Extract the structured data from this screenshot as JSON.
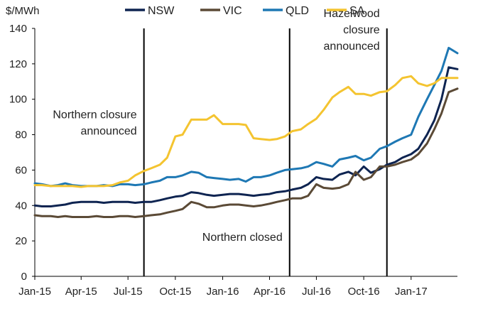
{
  "chart_data": {
    "type": "line",
    "ylabel": "$/MWh",
    "xlabel": "",
    "ylim": [
      0,
      140
    ],
    "yticks": [
      0,
      20,
      40,
      60,
      80,
      100,
      120,
      140
    ],
    "xlim": [
      "2015-01-01",
      "2017-04-01"
    ],
    "xticks": [
      {
        "date": "2015-01-01",
        "label": "Jan-15"
      },
      {
        "date": "2015-04-01",
        "label": "Apr-15"
      },
      {
        "date": "2015-07-01",
        "label": "Jul-15"
      },
      {
        "date": "2015-10-01",
        "label": "Oct-15"
      },
      {
        "date": "2016-01-01",
        "label": "Jan-16"
      },
      {
        "date": "2016-04-01",
        "label": "Apr-16"
      },
      {
        "date": "2016-07-01",
        "label": "Jul-16"
      },
      {
        "date": "2016-10-01",
        "label": "Oct-16"
      },
      {
        "date": "2017-01-01",
        "label": "Jan-17"
      }
    ],
    "grid": false,
    "legend_position": "top",
    "events": [
      {
        "date": "2015-08-01",
        "label_lines": [
          "Northern closure",
          "announced"
        ],
        "label_side": "left",
        "label_value": 80
      },
      {
        "date": "2016-05-10",
        "label_lines": [
          "Northern closed"
        ],
        "label_side": "left",
        "label_value": 20
      },
      {
        "date": "2016-11-15",
        "label_lines": [
          "Hazelwood",
          "closure",
          "announced"
        ],
        "label_side": "left",
        "label_value": 128
      }
    ],
    "series": [
      {
        "name": "NSW",
        "color": "#0e2451",
        "points": [
          [
            "2015-01-01",
            40
          ],
          [
            "2015-01-15",
            39.5
          ],
          [
            "2015-02-01",
            39.5
          ],
          [
            "2015-02-15",
            40
          ],
          [
            "2015-03-01",
            40.5
          ],
          [
            "2015-03-15",
            41.5
          ],
          [
            "2015-04-01",
            42
          ],
          [
            "2015-04-15",
            42
          ],
          [
            "2015-05-01",
            42
          ],
          [
            "2015-05-15",
            41.5
          ],
          [
            "2015-06-01",
            42
          ],
          [
            "2015-06-15",
            42
          ],
          [
            "2015-07-01",
            42
          ],
          [
            "2015-07-15",
            41.5
          ],
          [
            "2015-08-01",
            42
          ],
          [
            "2015-08-15",
            42
          ],
          [
            "2015-09-01",
            43
          ],
          [
            "2015-09-15",
            44
          ],
          [
            "2015-10-01",
            45
          ],
          [
            "2015-10-15",
            45.5
          ],
          [
            "2015-11-01",
            47.5
          ],
          [
            "2015-11-15",
            47
          ],
          [
            "2015-12-01",
            46
          ],
          [
            "2015-12-15",
            45.5
          ],
          [
            "2016-01-01",
            46
          ],
          [
            "2016-01-15",
            46.5
          ],
          [
            "2016-02-01",
            46.5
          ],
          [
            "2016-02-15",
            46
          ],
          [
            "2016-03-01",
            45.5
          ],
          [
            "2016-03-15",
            46
          ],
          [
            "2016-04-01",
            46.5
          ],
          [
            "2016-04-15",
            47.5
          ],
          [
            "2016-05-01",
            48
          ],
          [
            "2016-05-15",
            49
          ],
          [
            "2016-06-01",
            50
          ],
          [
            "2016-06-15",
            52
          ],
          [
            "2016-07-01",
            56
          ],
          [
            "2016-07-15",
            55
          ],
          [
            "2016-08-01",
            54.5
          ],
          [
            "2016-08-15",
            57.5
          ],
          [
            "2016-09-01",
            59
          ],
          [
            "2016-09-15",
            57
          ],
          [
            "2016-10-01",
            62
          ],
          [
            "2016-10-15",
            58.5
          ],
          [
            "2016-11-01",
            60.5
          ],
          [
            "2016-11-15",
            63
          ],
          [
            "2016-12-01",
            64.5
          ],
          [
            "2016-12-15",
            67
          ],
          [
            "2017-01-01",
            69
          ],
          [
            "2017-01-15",
            72
          ],
          [
            "2017-02-01",
            80
          ],
          [
            "2017-02-15",
            88
          ],
          [
            "2017-03-01",
            100
          ],
          [
            "2017-03-15",
            118
          ],
          [
            "2017-04-01",
            117
          ]
        ]
      },
      {
        "name": "VIC",
        "color": "#5b4a36",
        "points": [
          [
            "2015-01-01",
            34.5
          ],
          [
            "2015-01-15",
            34
          ],
          [
            "2015-02-01",
            34
          ],
          [
            "2015-02-15",
            33.5
          ],
          [
            "2015-03-01",
            34
          ],
          [
            "2015-03-15",
            33.5
          ],
          [
            "2015-04-01",
            33.5
          ],
          [
            "2015-04-15",
            33.5
          ],
          [
            "2015-05-01",
            34
          ],
          [
            "2015-05-15",
            33.5
          ],
          [
            "2015-06-01",
            33.5
          ],
          [
            "2015-06-15",
            34
          ],
          [
            "2015-07-01",
            34
          ],
          [
            "2015-07-15",
            33.5
          ],
          [
            "2015-08-01",
            34
          ],
          [
            "2015-08-15",
            34.5
          ],
          [
            "2015-09-01",
            35
          ],
          [
            "2015-09-15",
            36
          ],
          [
            "2015-10-01",
            37
          ],
          [
            "2015-10-15",
            38
          ],
          [
            "2015-11-01",
            42
          ],
          [
            "2015-11-15",
            41
          ],
          [
            "2015-12-01",
            39
          ],
          [
            "2015-12-15",
            39
          ],
          [
            "2016-01-01",
            40
          ],
          [
            "2016-01-15",
            40.5
          ],
          [
            "2016-02-01",
            40.5
          ],
          [
            "2016-02-15",
            40
          ],
          [
            "2016-03-01",
            39.5
          ],
          [
            "2016-03-15",
            40
          ],
          [
            "2016-04-01",
            41
          ],
          [
            "2016-04-15",
            42
          ],
          [
            "2016-05-01",
            43
          ],
          [
            "2016-05-15",
            44
          ],
          [
            "2016-06-01",
            44
          ],
          [
            "2016-06-15",
            45.5
          ],
          [
            "2016-07-01",
            52
          ],
          [
            "2016-07-15",
            50
          ],
          [
            "2016-08-01",
            49.5
          ],
          [
            "2016-08-15",
            50
          ],
          [
            "2016-09-01",
            52
          ],
          [
            "2016-09-15",
            59
          ],
          [
            "2016-10-01",
            54.5
          ],
          [
            "2016-10-15",
            56
          ],
          [
            "2016-11-01",
            62
          ],
          [
            "2016-11-15",
            62
          ],
          [
            "2016-12-01",
            63
          ],
          [
            "2016-12-15",
            64.5
          ],
          [
            "2017-01-01",
            66
          ],
          [
            "2017-01-15",
            69
          ],
          [
            "2017-02-01",
            75
          ],
          [
            "2017-02-15",
            83
          ],
          [
            "2017-03-01",
            92
          ],
          [
            "2017-03-15",
            104
          ],
          [
            "2017-04-01",
            106
          ]
        ]
      },
      {
        "name": "QLD",
        "color": "#1e78b4",
        "points": [
          [
            "2015-01-01",
            52.5
          ],
          [
            "2015-01-15",
            52
          ],
          [
            "2015-02-01",
            51
          ],
          [
            "2015-02-15",
            51.5
          ],
          [
            "2015-03-01",
            52.5
          ],
          [
            "2015-03-15",
            51.5
          ],
          [
            "2015-04-01",
            51
          ],
          [
            "2015-04-15",
            51
          ],
          [
            "2015-05-01",
            51
          ],
          [
            "2015-05-15",
            51.5
          ],
          [
            "2015-06-01",
            51
          ],
          [
            "2015-06-15",
            52
          ],
          [
            "2015-07-01",
            52
          ],
          [
            "2015-07-15",
            51.5
          ],
          [
            "2015-08-01",
            52
          ],
          [
            "2015-08-15",
            53
          ],
          [
            "2015-09-01",
            54
          ],
          [
            "2015-09-15",
            56
          ],
          [
            "2015-10-01",
            56
          ],
          [
            "2015-10-15",
            57
          ],
          [
            "2015-11-01",
            59
          ],
          [
            "2015-11-15",
            58.5
          ],
          [
            "2015-12-01",
            56
          ],
          [
            "2015-12-15",
            55.5
          ],
          [
            "2016-01-01",
            55
          ],
          [
            "2016-01-15",
            54.5
          ],
          [
            "2016-02-01",
            55
          ],
          [
            "2016-02-15",
            53.5
          ],
          [
            "2016-03-01",
            56
          ],
          [
            "2016-03-15",
            56
          ],
          [
            "2016-04-01",
            57
          ],
          [
            "2016-04-15",
            58.5
          ],
          [
            "2016-05-01",
            60
          ],
          [
            "2016-05-15",
            60.5
          ],
          [
            "2016-06-01",
            61
          ],
          [
            "2016-06-15",
            62
          ],
          [
            "2016-07-01",
            64.5
          ],
          [
            "2016-07-15",
            63.5
          ],
          [
            "2016-08-01",
            62
          ],
          [
            "2016-08-15",
            66
          ],
          [
            "2016-09-01",
            67
          ],
          [
            "2016-09-15",
            68
          ],
          [
            "2016-10-01",
            65.5
          ],
          [
            "2016-10-15",
            67
          ],
          [
            "2016-11-01",
            72
          ],
          [
            "2016-11-15",
            73.5
          ],
          [
            "2016-12-01",
            76
          ],
          [
            "2016-12-15",
            78
          ],
          [
            "2017-01-01",
            80
          ],
          [
            "2017-01-15",
            90
          ],
          [
            "2017-02-01",
            100
          ],
          [
            "2017-02-15",
            108
          ],
          [
            "2017-03-01",
            116
          ],
          [
            "2017-03-15",
            129
          ],
          [
            "2017-04-01",
            126
          ]
        ]
      },
      {
        "name": "SA",
        "color": "#f4c430",
        "points": [
          [
            "2015-01-01",
            51.5
          ],
          [
            "2015-01-15",
            51.5
          ],
          [
            "2015-02-01",
            51
          ],
          [
            "2015-02-15",
            51
          ],
          [
            "2015-03-01",
            51
          ],
          [
            "2015-03-15",
            51
          ],
          [
            "2015-04-01",
            50.5
          ],
          [
            "2015-04-15",
            51
          ],
          [
            "2015-05-01",
            51
          ],
          [
            "2015-05-15",
            51
          ],
          [
            "2015-06-01",
            51.5
          ],
          [
            "2015-06-15",
            53
          ],
          [
            "2015-07-01",
            54
          ],
          [
            "2015-07-15",
            57
          ],
          [
            "2015-08-01",
            59.5
          ],
          [
            "2015-08-15",
            61
          ],
          [
            "2015-09-01",
            63
          ],
          [
            "2015-09-15",
            67
          ],
          [
            "2015-10-01",
            79
          ],
          [
            "2015-10-15",
            80
          ],
          [
            "2015-11-01",
            88.5
          ],
          [
            "2015-11-15",
            88.5
          ],
          [
            "2015-12-01",
            88.5
          ],
          [
            "2015-12-15",
            91
          ],
          [
            "2016-01-01",
            86
          ],
          [
            "2016-01-15",
            86
          ],
          [
            "2016-02-01",
            86
          ],
          [
            "2016-02-15",
            85.5
          ],
          [
            "2016-03-01",
            78
          ],
          [
            "2016-03-15",
            77.5
          ],
          [
            "2016-04-01",
            77
          ],
          [
            "2016-04-15",
            77.5
          ],
          [
            "2016-05-01",
            79
          ],
          [
            "2016-05-15",
            82
          ],
          [
            "2016-06-01",
            83
          ],
          [
            "2016-06-15",
            86
          ],
          [
            "2016-07-01",
            89
          ],
          [
            "2016-07-15",
            94
          ],
          [
            "2016-08-01",
            101
          ],
          [
            "2016-08-15",
            104
          ],
          [
            "2016-09-01",
            107
          ],
          [
            "2016-09-15",
            103
          ],
          [
            "2016-10-01",
            103
          ],
          [
            "2016-10-15",
            102
          ],
          [
            "2016-11-01",
            104
          ],
          [
            "2016-11-15",
            104.5
          ],
          [
            "2016-12-01",
            108
          ],
          [
            "2016-12-15",
            112
          ],
          [
            "2017-01-01",
            113
          ],
          [
            "2017-01-15",
            109
          ],
          [
            "2017-02-01",
            107.5
          ],
          [
            "2017-02-15",
            109
          ],
          [
            "2017-03-01",
            112
          ],
          [
            "2017-03-15",
            112
          ],
          [
            "2017-04-01",
            112
          ]
        ]
      }
    ]
  }
}
